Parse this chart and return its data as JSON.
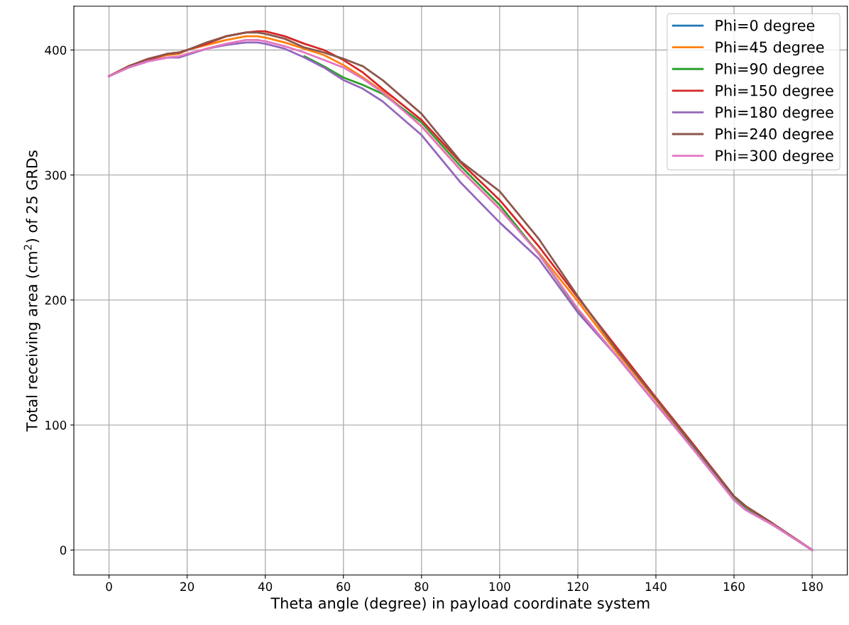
{
  "chart_data": {
    "type": "line",
    "xlabel": "Theta angle (degree) in payload coordinate system",
    "ylabel": "Total receiving area (cm$^{2}$) of 25 GRDs",
    "x": [
      0,
      5,
      10,
      15,
      18,
      20,
      25,
      30,
      35,
      38,
      40,
      45,
      50,
      55,
      60,
      65,
      70,
      80,
      90,
      100,
      110,
      120,
      130,
      140,
      150,
      160,
      163,
      170,
      180
    ],
    "series": [
      {
        "name": "Phi=0 degree",
        "color": "#1f77b4",
        "values": [
          null,
          null,
          null,
          null,
          null,
          null,
          null,
          null,
          null,
          null,
          null,
          null,
          null,
          null,
          null,
          null,
          null,
          null,
          null,
          null,
          null,
          null,
          null,
          null,
          null,
          null,
          null,
          null,
          null
        ]
      },
      {
        "name": "Phi=45 degree",
        "color": "#ff7f0e",
        "values": [
          379,
          387,
          392,
          396,
          397,
          400,
          404,
          408,
          411,
          411,
          410,
          406,
          401,
          396,
          388,
          378,
          367,
          339,
          304,
          273,
          238,
          199,
          158,
          120,
          80,
          42,
          null,
          null,
          null
        ]
      },
      {
        "name": "Phi=90 degree",
        "color": "#2ca02c",
        "values": [
          null,
          null,
          null,
          null,
          null,
          null,
          null,
          null,
          null,
          null,
          null,
          null,
          395,
          387,
          378,
          372,
          365,
          342,
          307,
          276,
          237,
          192,
          155,
          117,
          80,
          41,
          33,
          20,
          0
        ]
      },
      {
        "name": "Phi=150 degree",
        "color": "#d62728",
        "values": [
          379,
          387,
          392,
          397,
          398,
          400,
          405,
          411,
          414,
          415,
          415,
          411,
          405,
          400,
          392,
          382,
          369,
          344,
          310,
          280,
          243,
          202,
          162,
          122,
          83,
          43,
          35,
          21,
          0
        ]
      },
      {
        "name": "Phi=180 degree",
        "color": "#9467bd",
        "values": [
          379,
          386,
          391,
          394,
          394,
          396,
          401,
          404,
          406,
          406,
          405,
          401,
          394,
          386,
          376,
          369,
          359,
          332,
          294,
          262,
          233,
          190,
          155,
          117,
          79,
          40,
          32,
          20,
          0
        ]
      },
      {
        "name": "Phi=240 degree",
        "color": "#8c564b",
        "values": [
          379,
          387,
          393,
          397,
          398,
          400,
          406,
          411,
          414,
          414,
          413,
          409,
          402,
          398,
          393,
          387,
          376,
          349,
          311,
          287,
          249,
          203,
          160,
          121,
          82,
          43,
          35,
          21,
          0
        ]
      },
      {
        "name": "Phi=300 degree",
        "color": "#e377c2",
        "values": [
          379,
          386,
          391,
          394,
          395,
          397,
          401,
          405,
          408,
          408,
          407,
          403,
          398,
          392,
          386,
          377,
          366,
          339,
          304,
          273,
          237,
          193,
          155,
          117,
          79,
          40,
          32,
          20,
          0
        ]
      }
    ],
    "xlim": [
      -9,
      189
    ],
    "ylim": [
      -20,
      435
    ],
    "xticks": [
      0,
      20,
      40,
      60,
      80,
      100,
      120,
      140,
      160,
      180
    ],
    "yticks": [
      0,
      100,
      200,
      300,
      400
    ],
    "grid": true,
    "legend": "top right",
    "line_style": "solid",
    "marker": "none"
  }
}
